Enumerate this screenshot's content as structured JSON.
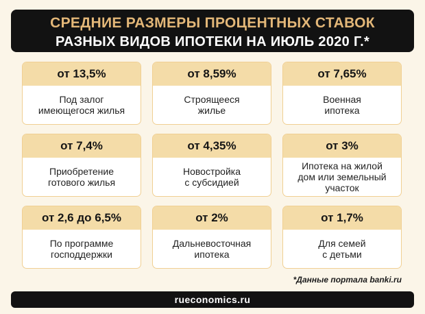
{
  "header": {
    "title_line1": "СРЕДНИЕ РАЗМЕРЫ ПРОЦЕНТНЫХ СТАВОК",
    "title_line2": "РАЗНЫХ ВИДОВ ИПОТЕКИ НА ИЮЛЬ 2020 Г.*"
  },
  "cards": [
    {
      "rate": "от 13,5%",
      "label": "Под залог\nимеющегося жилья"
    },
    {
      "rate": "от 8,59%",
      "label": "Строящееся\nжилье"
    },
    {
      "rate": "от 7,65%",
      "label": "Военная\nипотека"
    },
    {
      "rate": "от 7,4%",
      "label": "Приобретение\nготового жилья"
    },
    {
      "rate": "от 4,35%",
      "label": "Новостройка\nс субсидией"
    },
    {
      "rate": "от 3%",
      "label": "Ипотека на жилой\nдом или земельный\nучасток"
    },
    {
      "rate": "от 2,6 до 6,5%",
      "label": "По программе\nгосподдержки"
    },
    {
      "rate": "от 2%",
      "label": "Дальневосточная\nипотека"
    },
    {
      "rate": "от 1,7%",
      "label": "Для семей\nс детьми"
    }
  ],
  "footnote": "*Данные портала banki.ru",
  "footer": {
    "source": "rueconomics.ru"
  },
  "colors": {
    "background": "#fbf5e8",
    "header_bg": "#121212",
    "title_gold": "#e3b778",
    "card_header_bg": "#f4dca8",
    "card_border": "#f0cf92"
  }
}
